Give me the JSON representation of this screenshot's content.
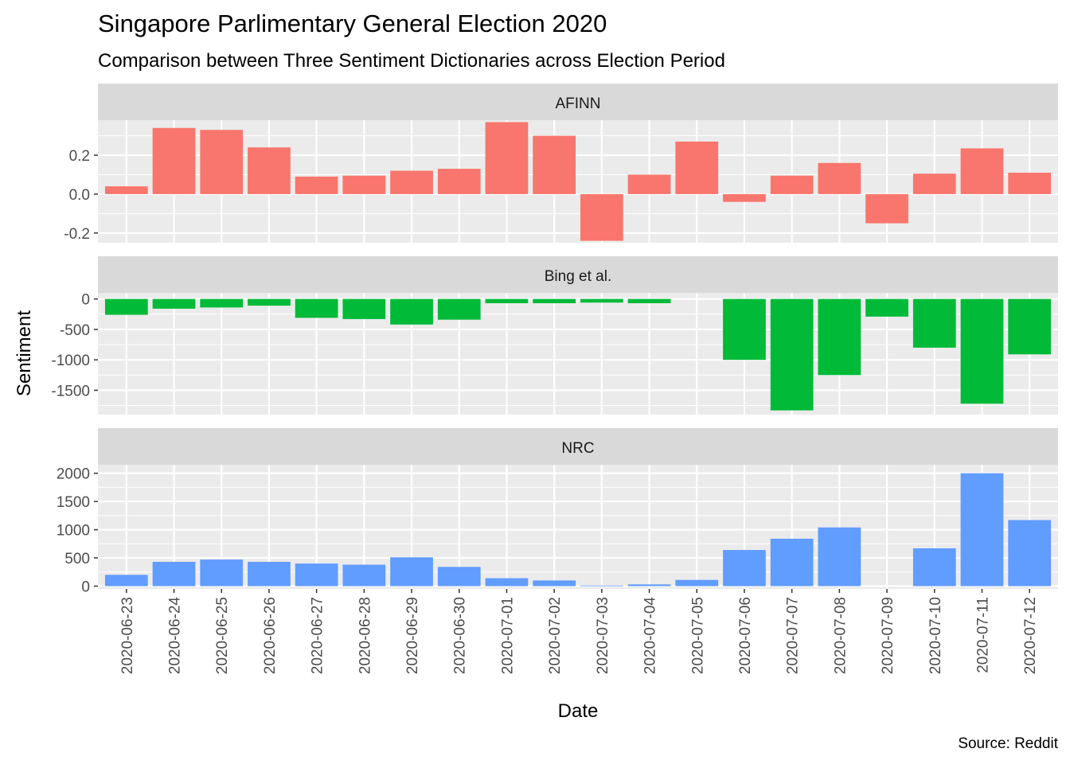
{
  "chart_data": {
    "type": "bar",
    "title": "Singapore Parlimentary General Election 2020",
    "subtitle": "Comparison between Three Sentiment Dictionaries across Election Period",
    "xlabel": "Date",
    "ylabel": "Sentiment",
    "caption": "Source: Reddit",
    "grid": true,
    "legend": "none",
    "categories": [
      "2020-06-23",
      "2020-06-24",
      "2020-06-25",
      "2020-06-26",
      "2020-06-27",
      "2020-06-28",
      "2020-06-29",
      "2020-06-30",
      "2020-07-01",
      "2020-07-02",
      "2020-07-03",
      "2020-07-04",
      "2020-07-05",
      "2020-07-06",
      "2020-07-07",
      "2020-07-08",
      "2020-07-09",
      "2020-07-10",
      "2020-07-11",
      "2020-07-12"
    ],
    "facets": [
      {
        "name": "AFINN",
        "color": "#F8766D",
        "ylim": [
          -0.25,
          0.38
        ],
        "yticks": [
          -0.2,
          0.0,
          0.2
        ],
        "yticklabels": [
          "-0.2",
          "0.0",
          "0.2"
        ],
        "yminor": [
          -0.1,
          0.1,
          0.3
        ],
        "values": [
          0.04,
          0.34,
          0.33,
          0.24,
          0.09,
          0.095,
          0.12,
          0.13,
          0.37,
          0.3,
          -0.24,
          0.1,
          0.27,
          -0.04,
          0.095,
          0.16,
          -0.15,
          0.105,
          0.235,
          0.11
        ]
      },
      {
        "name": "Bing et al.",
        "color": "#00BA38",
        "ylim": [
          -1900,
          100
        ],
        "yticks": [
          -1500,
          -1000,
          -500,
          0
        ],
        "yticklabels": [
          "-1500",
          "-1000",
          "-500",
          "0"
        ],
        "yminor": [
          -1750,
          -1250,
          -750,
          -250
        ],
        "values": [
          -260,
          -160,
          -140,
          -110,
          -310,
          -330,
          -420,
          -340,
          -70,
          -70,
          -60,
          -70,
          null,
          -1000,
          -1830,
          -1250,
          -290,
          -800,
          -1720,
          -910
        ]
      },
      {
        "name": "NRC",
        "color": "#619CFF",
        "ylim": [
          -50,
          2150
        ],
        "yticks": [
          0,
          500,
          1000,
          1500,
          2000
        ],
        "yticklabels": [
          "0",
          "500",
          "1000",
          "1500",
          "2000"
        ],
        "yminor": [
          250,
          750,
          1250,
          1750
        ],
        "values": [
          200,
          430,
          470,
          430,
          400,
          380,
          510,
          340,
          140,
          100,
          10,
          30,
          110,
          640,
          840,
          1040,
          null,
          670,
          2000,
          1170
        ]
      }
    ]
  }
}
